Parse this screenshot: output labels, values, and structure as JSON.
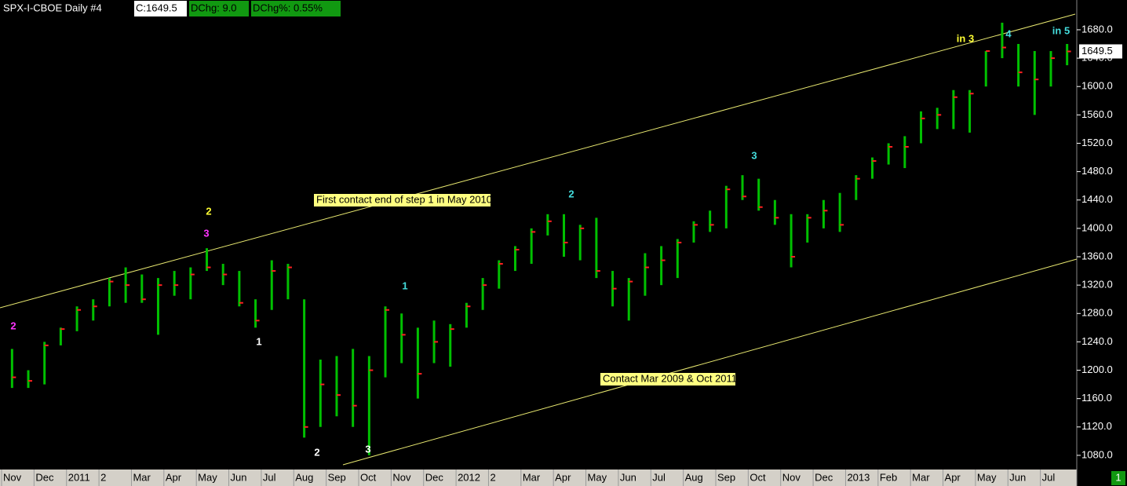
{
  "chart_data": {
    "type": "ohlc",
    "symbol": "SPX-I-CBOE  Daily  #4",
    "close_label": "C:1649.5",
    "change_label": "DChg: 9.0",
    "change_pct_label": "DChg%: 0.55%",
    "categories": [
      "Nov",
      null,
      "Dec",
      null,
      "2011",
      null,
      "2",
      null,
      "Mar",
      null,
      "Apr",
      null,
      "May",
      null,
      "Jun",
      null,
      "Jul",
      null,
      "Aug",
      null,
      "Sep",
      null,
      "Oct",
      null,
      "Nov",
      null,
      "Dec",
      null,
      "2012",
      null,
      "2",
      null,
      "Mar",
      null,
      "Apr",
      null,
      "May",
      null,
      "Jun",
      null,
      "Jul",
      null,
      "Aug",
      null,
      "Sep",
      null,
      "Oct",
      null,
      "Nov",
      null,
      "Dec",
      null,
      "2013",
      null,
      "Feb",
      null,
      "Mar",
      null,
      "Apr",
      null,
      "May",
      null,
      "Jun",
      null,
      "Jul",
      null
    ],
    "series": [
      {
        "name": "High",
        "color": "#00c000",
        "values": [
          1230,
          1200,
          1240,
          1260,
          1290,
          1300,
          1330,
          1345,
          1335,
          1330,
          1340,
          1345,
          1372,
          1350,
          1340,
          1300,
          1355,
          1350,
          1300,
          1215,
          1220,
          1230,
          1220,
          1290,
          1280,
          1260,
          1270,
          1265,
          1295,
          1330,
          1355,
          1375,
          1400,
          1420,
          1420,
          1405,
          1415,
          1340,
          1330,
          1365,
          1375,
          1385,
          1410,
          1425,
          1460,
          1475,
          1470,
          1440,
          1420,
          1420,
          1440,
          1450,
          1475,
          1500,
          1520,
          1530,
          1565,
          1570,
          1595,
          1595,
          1650,
          1690,
          1660,
          1650,
          1650,
          1660
        ]
      },
      {
        "name": "Low",
        "color": "#00c000",
        "values": [
          1175,
          1175,
          1180,
          1235,
          1255,
          1270,
          1290,
          1295,
          1295,
          1250,
          1305,
          1300,
          1340,
          1320,
          1290,
          1260,
          1285,
          1300,
          1105,
          1120,
          1135,
          1120,
          1080,
          1190,
          1210,
          1160,
          1210,
          1205,
          1260,
          1285,
          1315,
          1340,
          1350,
          1390,
          1360,
          1355,
          1330,
          1290,
          1270,
          1305,
          1320,
          1330,
          1380,
          1395,
          1400,
          1440,
          1425,
          1405,
          1345,
          1380,
          1400,
          1395,
          1440,
          1470,
          1490,
          1485,
          1520,
          1540,
          1540,
          1535,
          1600,
          1640,
          1600,
          1560,
          1600,
          1630
        ]
      },
      {
        "name": "Close",
        "color": "#ff2020",
        "values": [
          1190,
          1185,
          1235,
          1258,
          1285,
          1290,
          1325,
          1320,
          1300,
          1320,
          1320,
          1335,
          1345,
          1335,
          1295,
          1270,
          1340,
          1345,
          1120,
          1180,
          1165,
          1150,
          1200,
          1285,
          1250,
          1195,
          1240,
          1258,
          1290,
          1320,
          1350,
          1370,
          1395,
          1410,
          1380,
          1400,
          1340,
          1315,
          1325,
          1345,
          1355,
          1380,
          1405,
          1405,
          1455,
          1445,
          1430,
          1415,
          1360,
          1415,
          1425,
          1405,
          1470,
          1495,
          1515,
          1515,
          1555,
          1560,
          1585,
          1590,
          1650,
          1655,
          1620,
          1610,
          1640,
          1649.5
        ]
      }
    ],
    "last_close": 1649.5,
    "ylim": [
      1060,
      1722
    ],
    "yticks": [
      {
        "value": 1080,
        "label": "1080.0"
      },
      {
        "value": 1120,
        "label": "1120.0"
      },
      {
        "value": 1160,
        "label": "1160.0"
      },
      {
        "value": 1200,
        "label": "1200.0"
      },
      {
        "value": 1240,
        "label": "1240.0"
      },
      {
        "value": 1280,
        "label": "1280.0"
      },
      {
        "value": 1320,
        "label": "1320.0"
      },
      {
        "value": 1360,
        "label": "1360.0"
      },
      {
        "value": 1400,
        "label": "1400.0"
      },
      {
        "value": 1440,
        "label": "1440.0"
      },
      {
        "value": 1480,
        "label": "1480.0"
      },
      {
        "value": 1520,
        "label": "1520.0"
      },
      {
        "value": 1560,
        "label": "1560.0"
      },
      {
        "value": 1600,
        "label": "1600.0"
      },
      {
        "value": 1640,
        "label": "1640.0"
      },
      {
        "value": 1680,
        "label": "1680.0"
      }
    ],
    "annotations": [
      "First contact end of step 1 in May 2010",
      "Contact Mar 2009 & Oct 2011"
    ],
    "wave_labels": [
      "2",
      "3",
      "2",
      "1",
      "2",
      "3",
      "1",
      "2",
      "3",
      "in 3",
      "4",
      "in 5"
    ],
    "panel_number": "1"
  }
}
